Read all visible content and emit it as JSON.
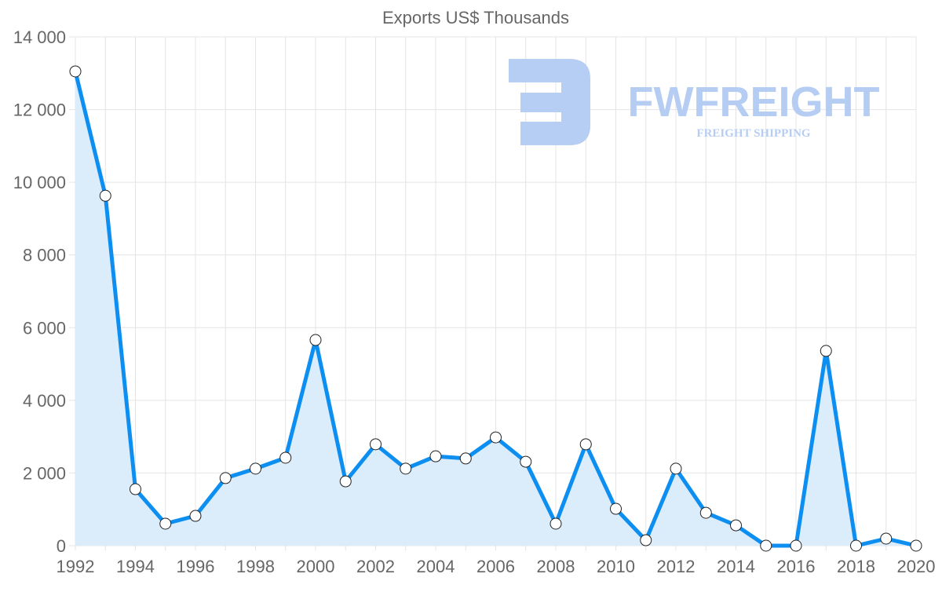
{
  "watermark": {
    "brand": "FWFREIGHT",
    "tagline": "FREIGHT SHIPPING"
  },
  "colors": {
    "line": "#0d8ff2",
    "fill": "#dbecfb",
    "grid": "#e4e4e4",
    "text": "#666666",
    "logo": "#b3cbf3"
  },
  "chart_data": {
    "type": "line",
    "title": "Exports US$ Thousands",
    "xlabel": "",
    "ylabel": "",
    "ylim": [
      0,
      14000
    ],
    "yticks": [
      0,
      2000,
      4000,
      6000,
      8000,
      10000,
      12000,
      14000
    ],
    "ytick_labels": [
      "0",
      "2 000",
      "4 000",
      "6 000",
      "8 000",
      "10 000",
      "12 000",
      "14 000"
    ],
    "xlim": [
      1992,
      2020
    ],
    "xticks": [
      "1992",
      "1994",
      "1996",
      "1998",
      "2000",
      "2002",
      "2004",
      "2006",
      "2008",
      "2010",
      "2012",
      "2014",
      "2016",
      "2018",
      "2020"
    ],
    "grid": true,
    "series": [
      {
        "name": "Exports",
        "x": [
          1992,
          1993,
          1994,
          1995,
          1996,
          1997,
          1998,
          1999,
          2000,
          2001,
          2002,
          2003,
          2004,
          2005,
          2006,
          2007,
          2008,
          2009,
          2010,
          2011,
          2012,
          2013,
          2014,
          2015,
          2016,
          2017,
          2018,
          2019,
          2020
        ],
        "values": [
          13050,
          9630,
          1555,
          605,
          820,
          1860,
          2120,
          2420,
          5660,
          1770,
          2790,
          2120,
          2460,
          2400,
          2980,
          2310,
          605,
          2790,
          1015,
          150,
          2120,
          905,
          560,
          0,
          0,
          5360,
          0,
          195,
          0
        ]
      }
    ]
  }
}
